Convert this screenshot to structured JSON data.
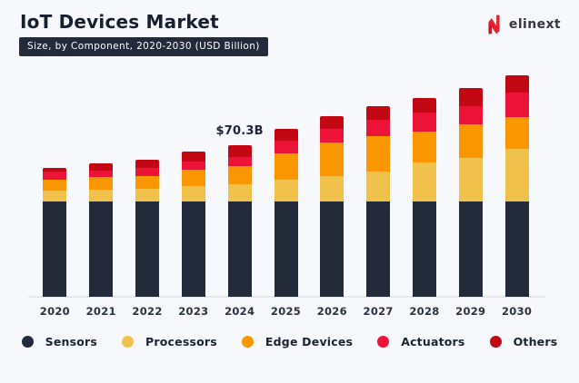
{
  "header": {
    "title": "IoT Devices Market",
    "subtitle_badge": "Size, by Component, 2020-2030 (USD Billion)",
    "brand_name": "elinext"
  },
  "chart_data": {
    "type": "bar",
    "stacked": true,
    "title": "IoT Devices Market",
    "subtitle": "Size, by Component, 2020-2030 (USD Billion)",
    "unit": "USD Billion",
    "grid": false,
    "legend_position": "bottom",
    "categories": [
      "2020",
      "2021",
      "2022",
      "2023",
      "2024",
      "2025",
      "2026",
      "2027",
      "2028",
      "2029",
      "2030"
    ],
    "series": [
      {
        "name": "Sensors",
        "color": "#232B3B",
        "values": [
          44.3,
          44.3,
          44.3,
          44.3,
          44.3,
          44.3,
          44.3,
          44.3,
          44.3,
          44.3,
          44.3
        ]
      },
      {
        "name": "Processors",
        "color": "#F0C24B",
        "values": [
          4.8,
          5.2,
          5.9,
          7.0,
          7.7,
          10.0,
          11.7,
          13.6,
          17.8,
          20.3,
          24.5
        ]
      },
      {
        "name": "Edge Devices",
        "color": "#FA9600",
        "values": [
          5.1,
          5.9,
          5.9,
          7.6,
          8.7,
          12.2,
          15.4,
          16.8,
          14.7,
          15.4,
          14.7
        ]
      },
      {
        "name": "Actuators",
        "color": "#ED1238",
        "values": [
          3.8,
          3.2,
          3.6,
          3.7,
          4.2,
          5.9,
          6.3,
          7.2,
          8.8,
          8.4,
          11.2
        ]
      },
      {
        "name": "Others",
        "color": "#C20813",
        "values": [
          1.8,
          3.1,
          3.8,
          4.8,
          5.4,
          5.6,
          5.9,
          6.6,
          6.6,
          8.4,
          8.1
        ]
      }
    ],
    "totals": [
      59.8,
      61.7,
      63.5,
      67.4,
      70.3,
      78.0,
      83.6,
      88.5,
      92.2,
      96.8,
      102.8
    ],
    "annotation": {
      "text": "$70.3B",
      "category": "2024"
    },
    "baseline_color": "#E4E7EB"
  },
  "colors": {
    "background": "#F7F8FB",
    "text_primary": "#1B2433",
    "badge_background": "#232B3B",
    "badge_text": "#FFFFFF",
    "brand_red": "#E8202E",
    "brand_red_dark": "#C91423"
  }
}
